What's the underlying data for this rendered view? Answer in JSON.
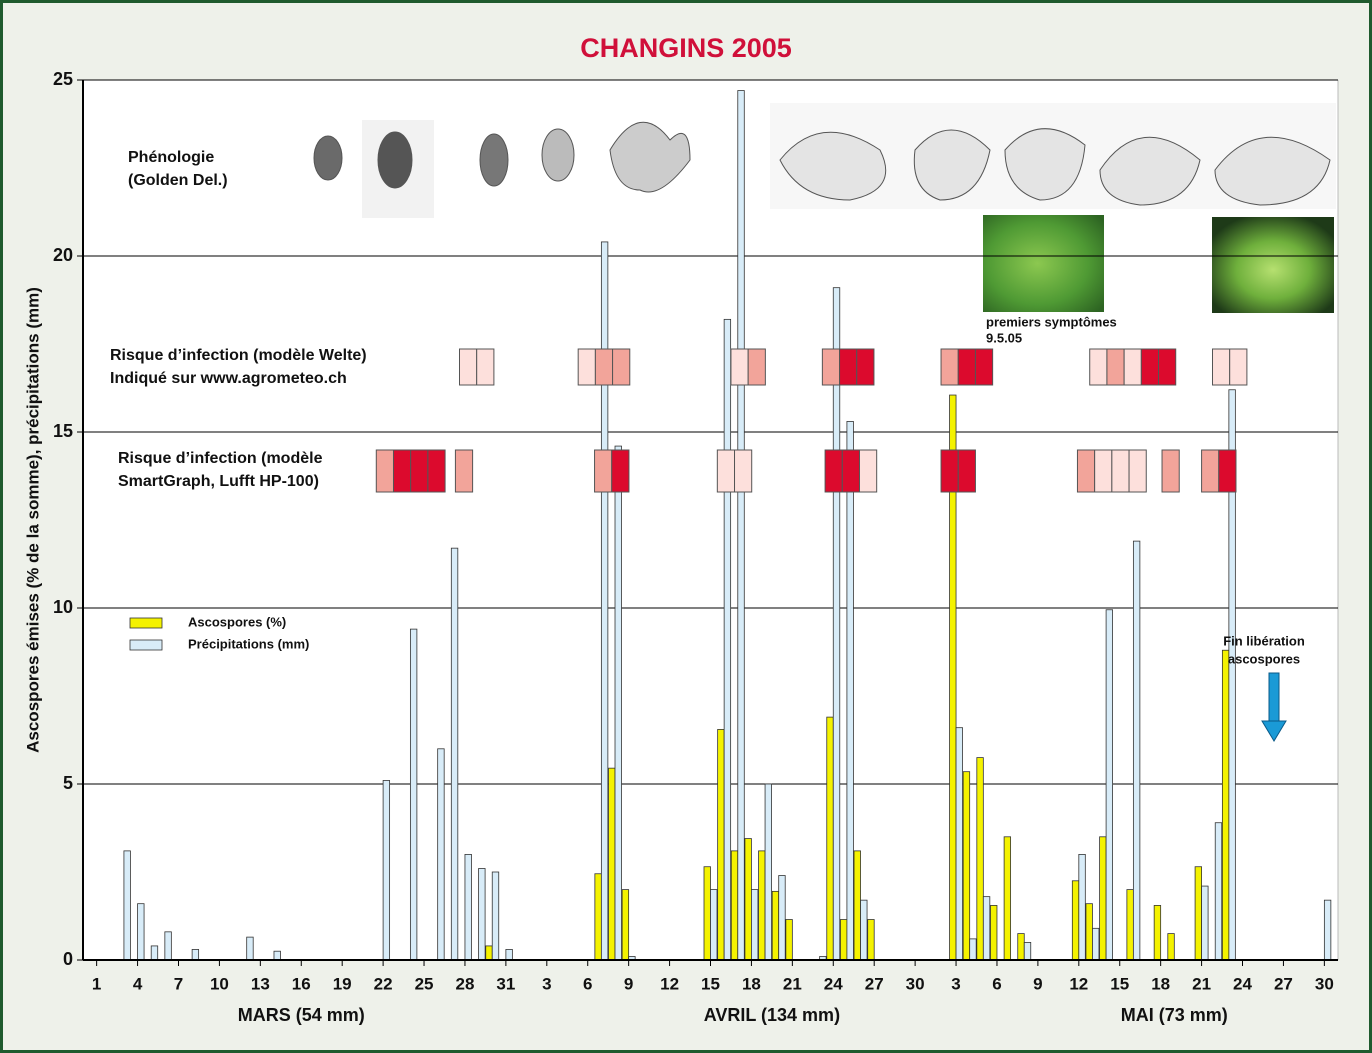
{
  "chart_data": {
    "type": "bar",
    "title": "CHANGINS 2005",
    "y_label": "Ascospores émises (% de la somme), précipitations (mm)",
    "xlim": [
      0,
      92
    ],
    "xticks": [
      1,
      4,
      7,
      10,
      13,
      16,
      19,
      22,
      25,
      28,
      31,
      {
        "value": 34,
        "label": "3"
      },
      {
        "value": 37,
        "label": "6"
      },
      {
        "value": 40,
        "label": "9"
      },
      {
        "value": 43,
        "label": "12"
      },
      {
        "value": 46,
        "label": "15"
      },
      {
        "value": 49,
        "label": "18"
      },
      {
        "value": 52,
        "label": "21"
      },
      {
        "value": 55,
        "label": "24"
      },
      {
        "value": 58,
        "label": "27"
      },
      {
        "value": 61,
        "label": "30"
      },
      {
        "value": 64,
        "label": "3"
      },
      {
        "value": 67,
        "label": "6"
      },
      {
        "value": 70,
        "label": "9"
      },
      {
        "value": 73,
        "label": "12"
      },
      {
        "value": 76,
        "label": "15"
      },
      {
        "value": 79,
        "label": "18"
      },
      {
        "value": 82,
        "label": "21"
      },
      {
        "value": 85,
        "label": "24"
      },
      {
        "value": 88,
        "label": "27"
      },
      {
        "value": 91,
        "label": "30"
      }
    ],
    "month_labels": [
      "MARS (54 mm)",
      "AVRIL (134 mm)",
      "MAI (73 mm)"
    ],
    "ylim": [
      0,
      25
    ],
    "yticks": [
      0,
      5,
      10,
      15,
      20,
      25
    ],
    "grid": true,
    "series": [
      {
        "name": "Ascospores (%)",
        "color": "#f4f200",
        "x": [
          30,
          38,
          39,
          40,
          46,
          47,
          48,
          49,
          50,
          51,
          52,
          55,
          56,
          57,
          58,
          64,
          65,
          66,
          67,
          68,
          69,
          73,
          74,
          75,
          77,
          79,
          80,
          82,
          84
        ],
        "values": [
          0.4,
          2.45,
          5.45,
          2.0,
          2.65,
          6.55,
          3.1,
          3.45,
          3.1,
          1.95,
          1.15,
          6.9,
          1.15,
          3.1,
          1.15,
          16.05,
          5.35,
          5.75,
          1.55,
          3.5,
          0.75,
          2.25,
          1.6,
          3.5,
          2.0,
          1.55,
          0.75,
          2.65,
          8.8
        ]
      },
      {
        "name": "Précipitations (mm)",
        "color": "#d8ecf8",
        "x": [
          3,
          4,
          5,
          6,
          8,
          12,
          14,
          22,
          24,
          26,
          27,
          28,
          29,
          30,
          31,
          38,
          39,
          40,
          46,
          47,
          48,
          49,
          50,
          51,
          54,
          55,
          56,
          57,
          64,
          65,
          66,
          69,
          73,
          74,
          75,
          77,
          82,
          83,
          84,
          91
        ],
        "values": [
          3.1,
          1.6,
          0.4,
          0.8,
          0.3,
          0.65,
          0.25,
          5.1,
          9.4,
          6.0,
          11.7,
          3.0,
          2.6,
          2.5,
          0.3,
          20.4,
          14.6,
          0.1,
          2.0,
          18.2,
          24.7,
          2.0,
          5.0,
          2.4,
          0.1,
          19.1,
          15.3,
          1.7,
          6.6,
          0.6,
          1.8,
          0.5,
          3.0,
          0.9,
          9.95,
          11.9,
          2.1,
          3.9,
          16.2,
          1.7
        ]
      }
    ],
    "phenology_label": [
      "Phénologie",
      "(Golden Del.)"
    ],
    "infection_rows": [
      {
        "label": [
          "Risque d’infection (modèle Welte)",
          "Indiqué sur www.agrometeo.ch"
        ],
        "groups": [
          {
            "x": 27.6,
            "colors": [
              "#fde0dc",
              "#fde0dc"
            ]
          },
          {
            "x": 36.3,
            "colors": [
              "#fde0dc",
              "#f2a49a",
              "#f2a49a"
            ]
          },
          {
            "x": 47.5,
            "colors": [
              "#fde0dc",
              "#f2a49a"
            ]
          },
          {
            "x": 54.2,
            "colors": [
              "#f2a49a",
              "#dc0a2d",
              "#dc0a2d"
            ]
          },
          {
            "x": 62.9,
            "colors": [
              "#f2a49a",
              "#dc0a2d",
              "#dc0a2d"
            ]
          },
          {
            "x": 73.8,
            "colors": [
              "#fde0dc",
              "#f2a49a",
              "#fde0dc",
              "#dc0a2d",
              "#dc0a2d"
            ]
          },
          {
            "x": 82.8,
            "colors": [
              "#fde0dc",
              "#fde0dc"
            ]
          }
        ]
      },
      {
        "label": [
          "Risque d’infection (modèle",
          "SmartGraph, Lufft HP-100)"
        ],
        "groups": [
          {
            "x": 21.5,
            "colors": [
              "#f2a49a",
              "#dc0a2d",
              "#dc0a2d",
              "#dc0a2d"
            ]
          },
          {
            "x": 27.3,
            "colors": [
              "#f2a49a"
            ]
          },
          {
            "x": 37.5,
            "colors": [
              "#f2a49a",
              "#dc0a2d"
            ]
          },
          {
            "x": 46.5,
            "colors": [
              "#fde0dc",
              "#fde0dc"
            ]
          },
          {
            "x": 54.4,
            "colors": [
              "#dc0a2d",
              "#dc0a2d",
              "#fde0dc"
            ]
          },
          {
            "x": 62.9,
            "colors": [
              "#dc0a2d",
              "#dc0a2d"
            ]
          },
          {
            "x": 72.9,
            "colors": [
              "#f2a49a",
              "#fde0dc",
              "#fde0dc",
              "#fde0dc"
            ]
          },
          {
            "x": 79.1,
            "colors": [
              "#f2a49a"
            ]
          },
          {
            "x": 82.0,
            "colors": [
              "#f2a49a",
              "#dc0a2d"
            ]
          }
        ]
      }
    ],
    "symptoms_note": [
      "premiers symptômes",
      "9.5.05"
    ],
    "end_note": [
      "Fin libération",
      "ascospores"
    ]
  }
}
